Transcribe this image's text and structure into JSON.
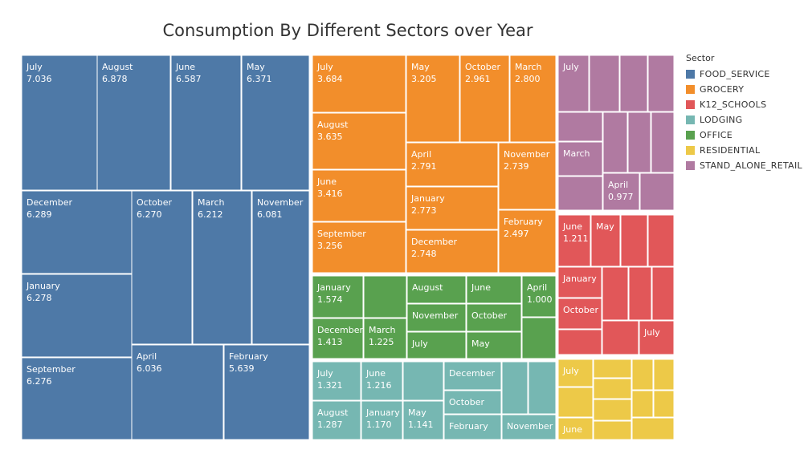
{
  "chart_data": {
    "type": "treemap",
    "title": "Consumption By Different Sectors over Year",
    "legend": {
      "title": "Sector",
      "position": "right",
      "entries": [
        {
          "name": "FOOD_SERVICE",
          "color": "#4e79a7"
        },
        {
          "name": "GROCERY",
          "color": "#f28e2b"
        },
        {
          "name": "K12_SCHOOLS",
          "color": "#e15759"
        },
        {
          "name": "LODGING",
          "color": "#76b7b2"
        },
        {
          "name": "OFFICE",
          "color": "#59a14f"
        },
        {
          "name": "RESIDENTIAL",
          "color": "#edc948"
        },
        {
          "name": "STAND_ALONE_RETAIL",
          "color": "#b07aa1"
        }
      ]
    },
    "sectors": [
      {
        "name": "FOOD_SERVICE",
        "children": [
          {
            "month": "July",
            "value": "7.036"
          },
          {
            "month": "August",
            "value": "6.878"
          },
          {
            "month": "June",
            "value": "6.587"
          },
          {
            "month": "May",
            "value": "6.371"
          },
          {
            "month": "December",
            "value": "6.289"
          },
          {
            "month": "October",
            "value": "6.270"
          },
          {
            "month": "March",
            "value": "6.212"
          },
          {
            "month": "November",
            "value": "6.081"
          },
          {
            "month": "January",
            "value": "6.278"
          },
          {
            "month": "September",
            "value": "6.276"
          },
          {
            "month": "April",
            "value": "6.036"
          },
          {
            "month": "February",
            "value": "5.639"
          }
        ]
      },
      {
        "name": "GROCERY",
        "children": [
          {
            "month": "July",
            "value": "3.684"
          },
          {
            "month": "May",
            "value": "3.205"
          },
          {
            "month": "October",
            "value": "2.961"
          },
          {
            "month": "March",
            "value": "2.800"
          },
          {
            "month": "August",
            "value": "3.635"
          },
          {
            "month": "April",
            "value": "2.791"
          },
          {
            "month": "November",
            "value": "2.739"
          },
          {
            "month": "June",
            "value": "3.416"
          },
          {
            "month": "January",
            "value": "2.773"
          },
          {
            "month": "September",
            "value": "3.256"
          },
          {
            "month": "February",
            "value": "2.497"
          },
          {
            "month": "December",
            "value": "2.748"
          }
        ]
      },
      {
        "name": "OFFICE",
        "children": [
          {
            "month": "January",
            "value": "1.574"
          },
          {
            "month": "August",
            "value": ""
          },
          {
            "month": "June",
            "value": ""
          },
          {
            "month": "April",
            "value": "1.000"
          },
          {
            "month": "November",
            "value": ""
          },
          {
            "month": "October",
            "value": ""
          },
          {
            "month": "December",
            "value": "1.413"
          },
          {
            "month": "March",
            "value": "1.225"
          },
          {
            "month": "July",
            "value": ""
          },
          {
            "month": "May",
            "value": ""
          }
        ]
      },
      {
        "name": "LODGING",
        "children": [
          {
            "month": "July",
            "value": "1.321"
          },
          {
            "month": "June",
            "value": "1.216"
          },
          {
            "month": "December",
            "value": ""
          },
          {
            "month": "October",
            "value": ""
          },
          {
            "month": "August",
            "value": "1.287"
          },
          {
            "month": "January",
            "value": "1.170"
          },
          {
            "month": "May",
            "value": "1.141"
          },
          {
            "month": "February",
            "value": ""
          },
          {
            "month": "November",
            "value": ""
          }
        ]
      },
      {
        "name": "STAND_ALONE_RETAIL",
        "children": [
          {
            "month": "July",
            "value": ""
          },
          {
            "month": "March",
            "value": ""
          },
          {
            "month": "April",
            "value": "0.977"
          }
        ]
      },
      {
        "name": "K12_SCHOOLS",
        "children": [
          {
            "month": "June",
            "value": "1.211"
          },
          {
            "month": "May",
            "value": ""
          },
          {
            "month": "January",
            "value": ""
          },
          {
            "month": "October",
            "value": ""
          },
          {
            "month": "July",
            "value": ""
          }
        ]
      },
      {
        "name": "RESIDENTIAL",
        "children": [
          {
            "month": "July",
            "value": ""
          },
          {
            "month": "June",
            "value": ""
          }
        ]
      }
    ]
  }
}
